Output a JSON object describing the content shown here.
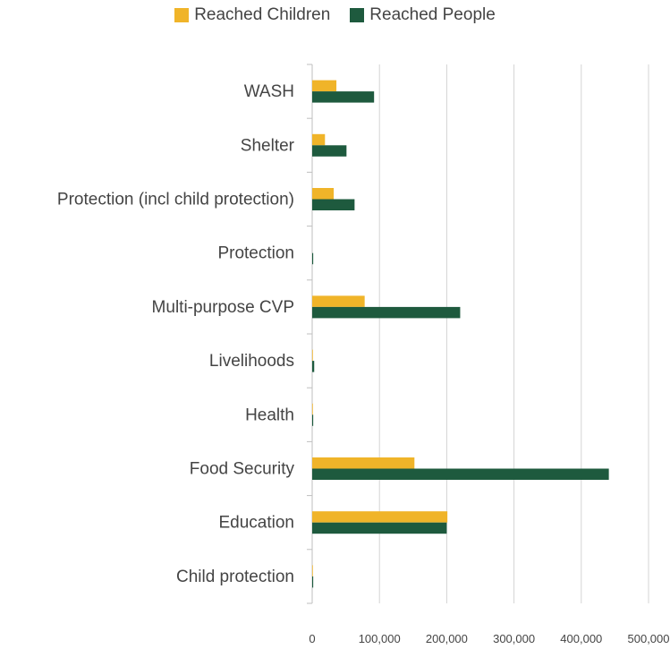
{
  "chart_data": {
    "type": "bar",
    "orientation": "horizontal",
    "categories": [
      "WASH",
      "Shelter",
      "Protection (incl child protection)",
      "Protection",
      "Multi-purpose CVP",
      "Livelihoods",
      "Health",
      "Food Security",
      "Education",
      "Child protection"
    ],
    "series": [
      {
        "name": "Reached Children",
        "color": "#f0b429",
        "values": [
          36000,
          19000,
          32000,
          0,
          78000,
          1000,
          1000,
          152000,
          201000,
          1000
        ]
      },
      {
        "name": "Reached People",
        "color": "#1e5a3e",
        "values": [
          92000,
          51000,
          63000,
          1500,
          220000,
          3000,
          1500,
          441000,
          200000,
          1500
        ]
      }
    ],
    "xlim": [
      0,
      500000
    ],
    "x_ticks": [
      "0",
      "100,000",
      "200,000",
      "300,000",
      "400,000",
      "500,000"
    ],
    "grid": true,
    "legend_position": "top"
  }
}
